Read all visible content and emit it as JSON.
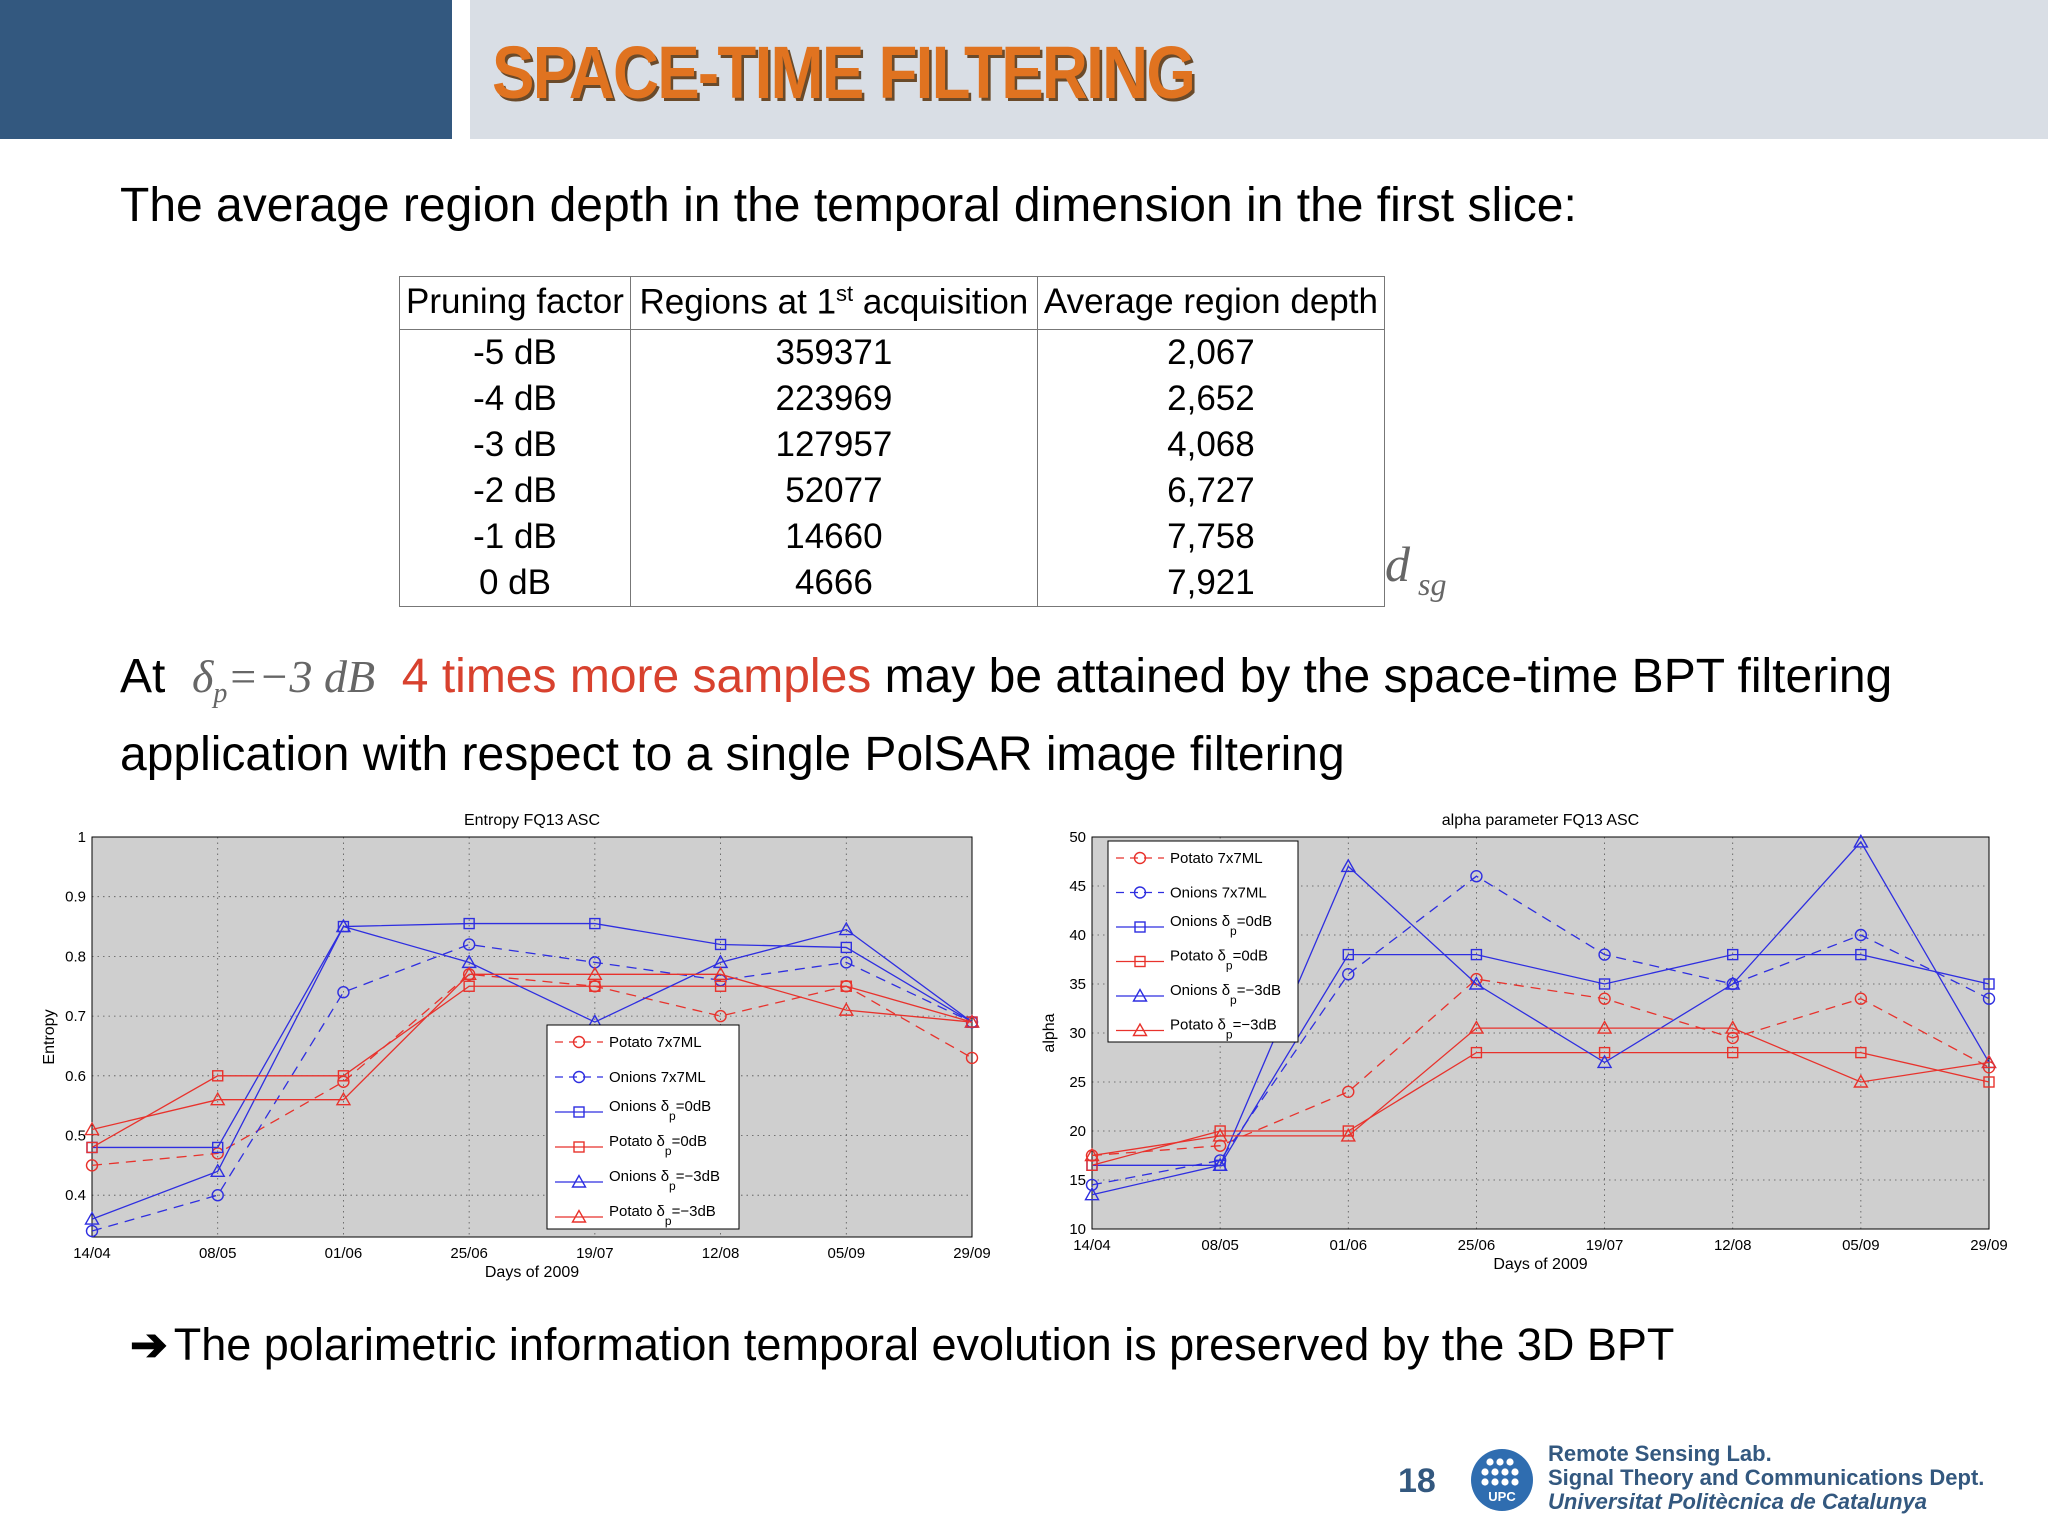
{
  "title": "SPACE-TIME FILTERING",
  "intro": "The average region depth in the temporal dimension in the first slice:",
  "table": {
    "headers": [
      "Pruning factor",
      "Regions at 1",
      "st",
      " acquisition",
      "Average region depth"
    ],
    "rows": [
      [
        "-5 dB",
        "359371",
        "2,067"
      ],
      [
        "-4 dB",
        "223969",
        "2,652"
      ],
      [
        "-3 dB",
        "127957",
        "4,068"
      ],
      [
        "-2 dB",
        "52077",
        "6,727"
      ],
      [
        "-1 dB",
        "14660",
        "7,758"
      ],
      [
        "0 dB",
        "4666",
        "7,921"
      ]
    ]
  },
  "dsg": {
    "base": "d",
    "sub": "sg"
  },
  "statement": {
    "at": "At",
    "delta_symbol": "δ",
    "delta_sub": "p",
    "delta_value": "=−3 dB",
    "highlight": "4 times more samples",
    "rest": " may be attained by the space-time BPT filtering application with respect to a single PolSAR image filtering"
  },
  "conclusion": "The polarimetric information temporal evolution is preserved by the 3D BPT",
  "page_number": "18",
  "lab": {
    "line1": "Remote Sensing Lab.",
    "line2": "Signal Theory and Communications Dept.",
    "line3": "Universitat Politècnica de Catalunya",
    "logo_text": "UPC"
  },
  "colors": {
    "header_blue": "#33587f",
    "title_orange": "#e07320",
    "red": "#e8322c",
    "blue": "#2e2ee0",
    "plot_bg": "#cfcfcf"
  },
  "legend_names": [
    {
      "base": "Potato 7x7ML",
      "sub": "",
      "after": ""
    },
    {
      "base": "Onions 7x7ML",
      "sub": "",
      "after": ""
    },
    {
      "base": "Onions δ",
      "sub": "p",
      "after": "=0dB"
    },
    {
      "base": "Potato δ",
      "sub": "p",
      "after": "=0dB"
    },
    {
      "base": "Onions δ",
      "sub": "p",
      "after": "=−3dB"
    },
    {
      "base": "Potato δ",
      "sub": "p",
      "after": "=−3dB"
    }
  ],
  "chart_data": [
    {
      "type": "line",
      "title": "Entropy FQ13 ASC",
      "xlabel": "Days of 2009",
      "ylabel": "Entropy",
      "categories": [
        "14/04",
        "08/05",
        "01/06",
        "25/06",
        "19/07",
        "12/08",
        "05/09",
        "29/09"
      ],
      "ylim": [
        0.33,
        1.0
      ],
      "yticks": [
        "1",
        "0.9",
        "0.8",
        "0.7",
        "0.6",
        "0.5",
        "0.4"
      ],
      "grid": true,
      "legend_position": "lower-center",
      "series": [
        {
          "values": [
            0.45,
            0.47,
            0.59,
            0.77,
            0.75,
            0.7,
            0.75,
            0.63
          ],
          "color": "#e8322c",
          "marker": "circle",
          "dash": true
        },
        {
          "values": [
            0.34,
            0.4,
            0.74,
            0.82,
            0.79,
            0.76,
            0.79,
            0.69
          ],
          "color": "#2e2ee0",
          "marker": "circle",
          "dash": true
        },
        {
          "values": [
            0.48,
            0.48,
            0.85,
            0.855,
            0.855,
            0.82,
            0.815,
            0.69
          ],
          "color": "#2e2ee0",
          "marker": "square",
          "dash": false
        },
        {
          "values": [
            0.48,
            0.6,
            0.6,
            0.75,
            0.75,
            0.75,
            0.75,
            0.69
          ],
          "color": "#e8322c",
          "marker": "square",
          "dash": false
        },
        {
          "values": [
            0.36,
            0.44,
            0.85,
            0.79,
            0.69,
            0.79,
            0.845,
            0.69
          ],
          "color": "#2e2ee0",
          "marker": "triangle",
          "dash": false
        },
        {
          "values": [
            0.51,
            0.56,
            0.56,
            0.77,
            0.77,
            0.77,
            0.71,
            0.69
          ],
          "color": "#e8322c",
          "marker": "triangle",
          "dash": false
        }
      ]
    },
    {
      "type": "line",
      "title": "alpha parameter FQ13 ASC",
      "xlabel": "Days of 2009",
      "ylabel": "alpha",
      "categories": [
        "14/04",
        "08/05",
        "01/06",
        "25/06",
        "19/07",
        "12/08",
        "05/09",
        "29/09"
      ],
      "ylim": [
        10,
        50
      ],
      "yticks": [
        "50",
        "45",
        "40",
        "35",
        "30",
        "25",
        "20",
        "15",
        "10"
      ],
      "grid": true,
      "legend_position": "upper-left",
      "series": [
        {
          "values": [
            17.5,
            18.5,
            24,
            35.5,
            33.5,
            29.5,
            33.5,
            26.5
          ],
          "color": "#e8322c",
          "marker": "circle",
          "dash": true
        },
        {
          "values": [
            14.5,
            17,
            36,
            46,
            38,
            35,
            40,
            33.5
          ],
          "color": "#2e2ee0",
          "marker": "circle",
          "dash": true
        },
        {
          "values": [
            16.5,
            16.5,
            38,
            38,
            35,
            38,
            38,
            35
          ],
          "color": "#2e2ee0",
          "marker": "square",
          "dash": false
        },
        {
          "values": [
            16.5,
            20,
            20,
            28,
            28,
            28,
            28,
            25
          ],
          "color": "#e8322c",
          "marker": "square",
          "dash": false
        },
        {
          "values": [
            13.5,
            16.5,
            47,
            35,
            27,
            35,
            49.5,
            27
          ],
          "color": "#2e2ee0",
          "marker": "triangle",
          "dash": false
        },
        {
          "values": [
            17.5,
            19.5,
            19.5,
            30.5,
            30.5,
            30.5,
            25,
            27
          ],
          "color": "#e8322c",
          "marker": "triangle",
          "dash": false
        }
      ]
    }
  ]
}
